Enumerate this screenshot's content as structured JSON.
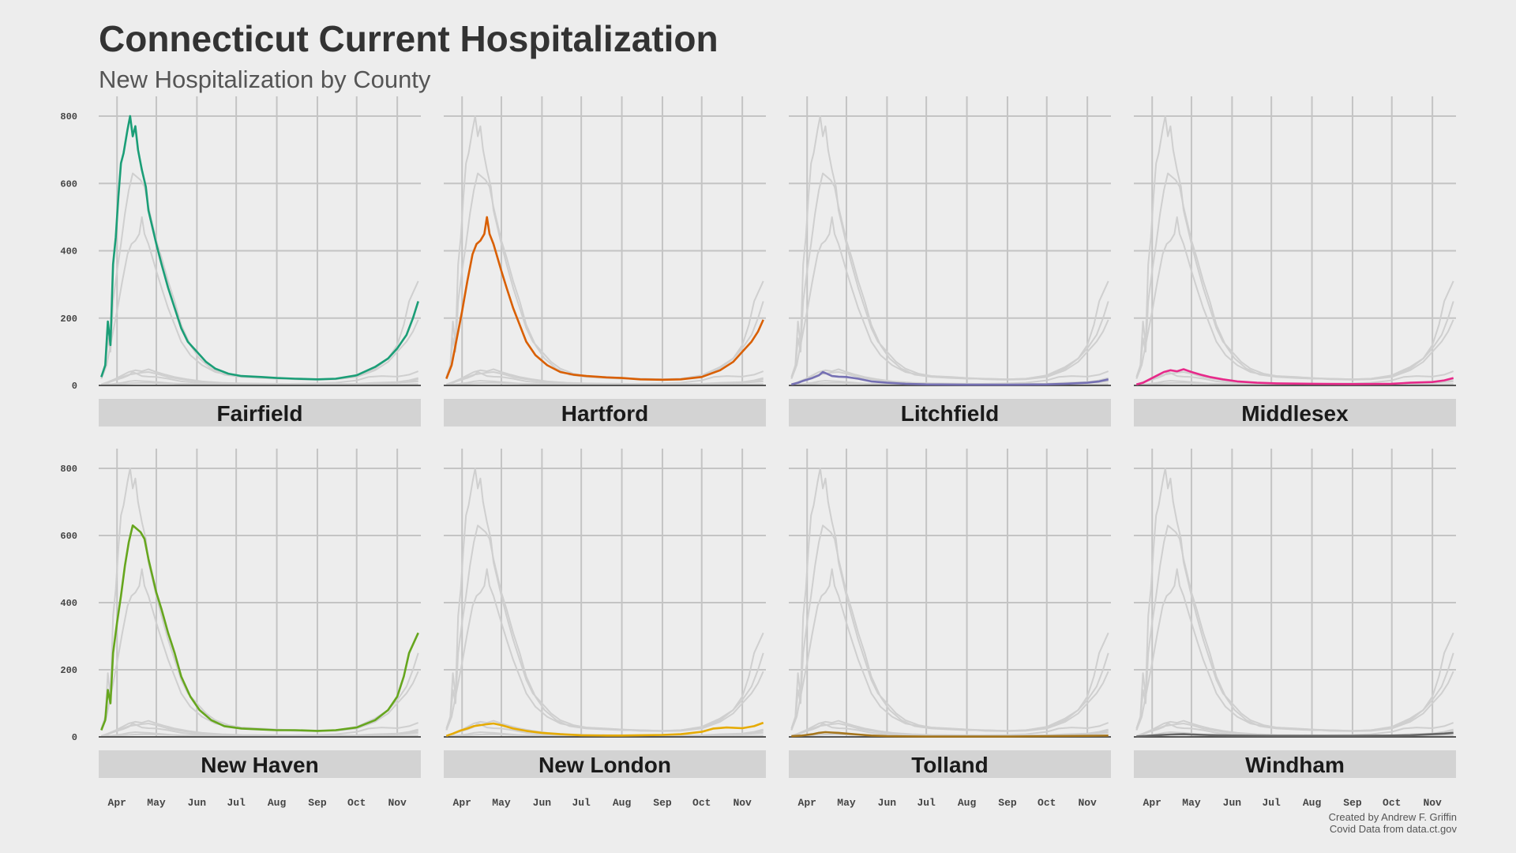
{
  "title": "Connecticut Current Hospitalization",
  "subtitle": "New Hospitalization by County",
  "caption": {
    "line1": "Created by Andrew F. Griffin",
    "line2": "Covid Data from data.ct.gov"
  },
  "colors": {
    "background": "#ededed",
    "grid": "#c4c4c4",
    "background_series": "#cfcfcf",
    "strip": "#d3d3d3",
    "baseline": "#555555"
  },
  "chart_data": {
    "type": "line",
    "layout": "small-multiples",
    "x_type": "date",
    "xlim": [
      "2020-03-18",
      "2020-11-19"
    ],
    "ylim": [
      0,
      840
    ],
    "y_ticks": [
      0,
      200,
      400,
      600,
      800
    ],
    "x_ticks": [
      {
        "date": "2020-04-01",
        "label": "Apr"
      },
      {
        "date": "2020-05-01",
        "label": "May"
      },
      {
        "date": "2020-06-01",
        "label": "Jun"
      },
      {
        "date": "2020-07-01",
        "label": "Jul"
      },
      {
        "date": "2020-08-01",
        "label": "Aug"
      },
      {
        "date": "2020-09-01",
        "label": "Sep"
      },
      {
        "date": "2020-10-01",
        "label": "Oct"
      },
      {
        "date": "2020-11-01",
        "label": "Nov"
      }
    ],
    "series": [
      {
        "name": "Fairfield",
        "color": "#1b9e77",
        "points": [
          [
            "2020-03-20",
            25
          ],
          [
            "2020-03-23",
            60
          ],
          [
            "2020-03-25",
            190
          ],
          [
            "2020-03-27",
            120
          ],
          [
            "2020-03-29",
            360
          ],
          [
            "2020-03-31",
            440
          ],
          [
            "2020-04-02",
            560
          ],
          [
            "2020-04-04",
            660
          ],
          [
            "2020-04-06",
            690
          ],
          [
            "2020-04-09",
            760
          ],
          [
            "2020-04-11",
            800
          ],
          [
            "2020-04-13",
            740
          ],
          [
            "2020-04-15",
            770
          ],
          [
            "2020-04-17",
            700
          ],
          [
            "2020-04-20",
            640
          ],
          [
            "2020-04-23",
            590
          ],
          [
            "2020-04-25",
            520
          ],
          [
            "2020-04-28",
            470
          ],
          [
            "2020-05-01",
            420
          ],
          [
            "2020-05-05",
            360
          ],
          [
            "2020-05-10",
            290
          ],
          [
            "2020-05-15",
            230
          ],
          [
            "2020-05-20",
            170
          ],
          [
            "2020-05-25",
            130
          ],
          [
            "2020-06-01",
            100
          ],
          [
            "2020-06-08",
            70
          ],
          [
            "2020-06-15",
            50
          ],
          [
            "2020-06-25",
            35
          ],
          [
            "2020-07-05",
            28
          ],
          [
            "2020-07-20",
            25
          ],
          [
            "2020-08-01",
            22
          ],
          [
            "2020-08-15",
            20
          ],
          [
            "2020-09-01",
            18
          ],
          [
            "2020-09-15",
            20
          ],
          [
            "2020-10-01",
            30
          ],
          [
            "2020-10-15",
            55
          ],
          [
            "2020-10-25",
            80
          ],
          [
            "2020-11-01",
            110
          ],
          [
            "2020-11-08",
            150
          ],
          [
            "2020-11-13",
            200
          ],
          [
            "2020-11-17",
            250
          ]
        ]
      },
      {
        "name": "Hartford",
        "color": "#d95f02",
        "points": [
          [
            "2020-03-20",
            20
          ],
          [
            "2020-03-24",
            60
          ],
          [
            "2020-03-28",
            140
          ],
          [
            "2020-04-01",
            220
          ],
          [
            "2020-04-05",
            310
          ],
          [
            "2020-04-09",
            390
          ],
          [
            "2020-04-12",
            420
          ],
          [
            "2020-04-15",
            430
          ],
          [
            "2020-04-18",
            450
          ],
          [
            "2020-04-20",
            500
          ],
          [
            "2020-04-22",
            450
          ],
          [
            "2020-04-25",
            420
          ],
          [
            "2020-04-28",
            380
          ],
          [
            "2020-05-01",
            340
          ],
          [
            "2020-05-05",
            290
          ],
          [
            "2020-05-10",
            230
          ],
          [
            "2020-05-15",
            180
          ],
          [
            "2020-05-20",
            130
          ],
          [
            "2020-05-27",
            90
          ],
          [
            "2020-06-05",
            60
          ],
          [
            "2020-06-15",
            40
          ],
          [
            "2020-06-25",
            32
          ],
          [
            "2020-07-05",
            28
          ],
          [
            "2020-07-20",
            24
          ],
          [
            "2020-08-01",
            22
          ],
          [
            "2020-08-15",
            18
          ],
          [
            "2020-09-01",
            17
          ],
          [
            "2020-09-15",
            18
          ],
          [
            "2020-10-01",
            25
          ],
          [
            "2020-10-15",
            45
          ],
          [
            "2020-10-25",
            70
          ],
          [
            "2020-11-01",
            100
          ],
          [
            "2020-11-08",
            130
          ],
          [
            "2020-11-13",
            160
          ],
          [
            "2020-11-17",
            195
          ]
        ]
      },
      {
        "name": "Litchfield",
        "color": "#7570b3",
        "points": [
          [
            "2020-03-20",
            3
          ],
          [
            "2020-03-25",
            8
          ],
          [
            "2020-03-30",
            15
          ],
          [
            "2020-04-05",
            22
          ],
          [
            "2020-04-10",
            30
          ],
          [
            "2020-04-13",
            40
          ],
          [
            "2020-04-16",
            35
          ],
          [
            "2020-04-20",
            28
          ],
          [
            "2020-04-25",
            26
          ],
          [
            "2020-05-01",
            25
          ],
          [
            "2020-05-10",
            20
          ],
          [
            "2020-05-20",
            12
          ],
          [
            "2020-06-01",
            8
          ],
          [
            "2020-06-15",
            5
          ],
          [
            "2020-07-01",
            3
          ],
          [
            "2020-08-01",
            2
          ],
          [
            "2020-09-01",
            2
          ],
          [
            "2020-10-01",
            3
          ],
          [
            "2020-10-15",
            5
          ],
          [
            "2020-11-01",
            8
          ],
          [
            "2020-11-10",
            12
          ],
          [
            "2020-11-17",
            18
          ]
        ]
      },
      {
        "name": "Middlesex",
        "color": "#e7298a",
        "points": [
          [
            "2020-03-20",
            3
          ],
          [
            "2020-03-25",
            8
          ],
          [
            "2020-03-30",
            18
          ],
          [
            "2020-04-05",
            30
          ],
          [
            "2020-04-10",
            40
          ],
          [
            "2020-04-15",
            45
          ],
          [
            "2020-04-20",
            42
          ],
          [
            "2020-04-25",
            48
          ],
          [
            "2020-05-01",
            40
          ],
          [
            "2020-05-08",
            32
          ],
          [
            "2020-05-15",
            25
          ],
          [
            "2020-05-25",
            18
          ],
          [
            "2020-06-05",
            12
          ],
          [
            "2020-06-20",
            8
          ],
          [
            "2020-07-05",
            6
          ],
          [
            "2020-08-01",
            5
          ],
          [
            "2020-09-01",
            4
          ],
          [
            "2020-10-01",
            5
          ],
          [
            "2020-10-15",
            8
          ],
          [
            "2020-11-01",
            10
          ],
          [
            "2020-11-10",
            15
          ],
          [
            "2020-11-17",
            22
          ]
        ]
      },
      {
        "name": "New Haven",
        "color": "#66a61e",
        "points": [
          [
            "2020-03-20",
            20
          ],
          [
            "2020-03-23",
            50
          ],
          [
            "2020-03-25",
            140
          ],
          [
            "2020-03-27",
            100
          ],
          [
            "2020-03-29",
            250
          ],
          [
            "2020-04-01",
            340
          ],
          [
            "2020-04-04",
            420
          ],
          [
            "2020-04-07",
            510
          ],
          [
            "2020-04-10",
            580
          ],
          [
            "2020-04-13",
            630
          ],
          [
            "2020-04-16",
            620
          ],
          [
            "2020-04-19",
            610
          ],
          [
            "2020-04-22",
            590
          ],
          [
            "2020-04-25",
            530
          ],
          [
            "2020-04-28",
            480
          ],
          [
            "2020-05-01",
            430
          ],
          [
            "2020-05-05",
            380
          ],
          [
            "2020-05-10",
            310
          ],
          [
            "2020-05-15",
            250
          ],
          [
            "2020-05-20",
            180
          ],
          [
            "2020-05-27",
            120
          ],
          [
            "2020-06-03",
            80
          ],
          [
            "2020-06-12",
            50
          ],
          [
            "2020-06-22",
            32
          ],
          [
            "2020-07-05",
            25
          ],
          [
            "2020-07-20",
            22
          ],
          [
            "2020-08-01",
            20
          ],
          [
            "2020-08-15",
            20
          ],
          [
            "2020-09-01",
            18
          ],
          [
            "2020-09-15",
            20
          ],
          [
            "2020-10-01",
            28
          ],
          [
            "2020-10-15",
            50
          ],
          [
            "2020-10-25",
            80
          ],
          [
            "2020-11-01",
            120
          ],
          [
            "2020-11-06",
            180
          ],
          [
            "2020-11-10",
            250
          ],
          [
            "2020-11-17",
            310
          ]
        ]
      },
      {
        "name": "New London",
        "color": "#e6ab02",
        "points": [
          [
            "2020-03-20",
            3
          ],
          [
            "2020-03-25",
            10
          ],
          [
            "2020-03-30",
            18
          ],
          [
            "2020-04-05",
            25
          ],
          [
            "2020-04-10",
            32
          ],
          [
            "2020-04-15",
            35
          ],
          [
            "2020-04-20",
            38
          ],
          [
            "2020-04-25",
            40
          ],
          [
            "2020-05-01",
            35
          ],
          [
            "2020-05-10",
            25
          ],
          [
            "2020-05-20",
            18
          ],
          [
            "2020-06-01",
            12
          ],
          [
            "2020-06-15",
            8
          ],
          [
            "2020-07-01",
            5
          ],
          [
            "2020-07-20",
            4
          ],
          [
            "2020-08-01",
            4
          ],
          [
            "2020-08-15",
            5
          ],
          [
            "2020-09-01",
            6
          ],
          [
            "2020-09-15",
            8
          ],
          [
            "2020-10-01",
            15
          ],
          [
            "2020-10-10",
            25
          ],
          [
            "2020-10-20",
            28
          ],
          [
            "2020-11-01",
            26
          ],
          [
            "2020-11-10",
            32
          ],
          [
            "2020-11-17",
            42
          ]
        ]
      },
      {
        "name": "Tolland",
        "color": "#a6761d",
        "points": [
          [
            "2020-03-20",
            2
          ],
          [
            "2020-03-28",
            4
          ],
          [
            "2020-04-05",
            8
          ],
          [
            "2020-04-10",
            12
          ],
          [
            "2020-04-15",
            14
          ],
          [
            "2020-04-20",
            13
          ],
          [
            "2020-04-25",
            12
          ],
          [
            "2020-05-01",
            10
          ],
          [
            "2020-05-10",
            7
          ],
          [
            "2020-05-20",
            4
          ],
          [
            "2020-06-01",
            2
          ],
          [
            "2020-07-01",
            1
          ],
          [
            "2020-08-01",
            1
          ],
          [
            "2020-09-01",
            1
          ],
          [
            "2020-10-01",
            2
          ],
          [
            "2020-11-01",
            3
          ],
          [
            "2020-11-17",
            4
          ]
        ]
      },
      {
        "name": "Windham",
        "color": "#666666",
        "points": [
          [
            "2020-03-20",
            1
          ],
          [
            "2020-03-28",
            3
          ],
          [
            "2020-04-05",
            5
          ],
          [
            "2020-04-15",
            7
          ],
          [
            "2020-04-25",
            8
          ],
          [
            "2020-05-01",
            7
          ],
          [
            "2020-05-10",
            6
          ],
          [
            "2020-05-20",
            5
          ],
          [
            "2020-06-01",
            4
          ],
          [
            "2020-07-01",
            3
          ],
          [
            "2020-08-01",
            3
          ],
          [
            "2020-09-01",
            3
          ],
          [
            "2020-10-01",
            4
          ],
          [
            "2020-10-15",
            5
          ],
          [
            "2020-11-01",
            8
          ],
          [
            "2020-11-10",
            10
          ],
          [
            "2020-11-17",
            12
          ]
        ]
      }
    ]
  }
}
